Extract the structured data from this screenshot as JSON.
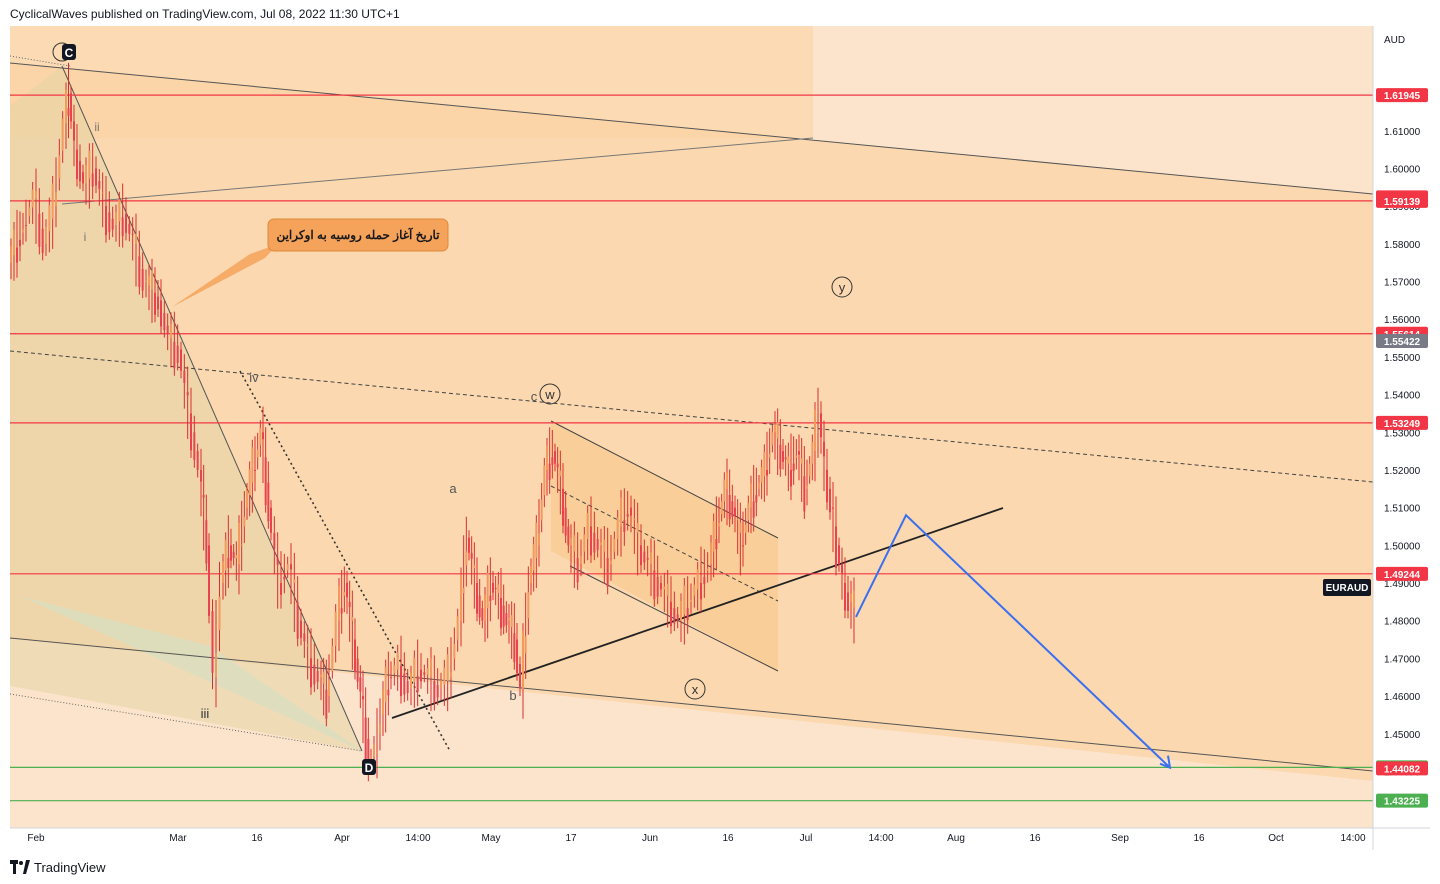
{
  "header": {
    "publish_line": "CyclicalWaves published on TradingView.com, Jul 08, 2022 11:30 UTC+1"
  },
  "footer": {
    "brand": "TradingView"
  },
  "chart_data": {
    "type": "candlestick",
    "symbol": "EURAUD",
    "currency": "AUD",
    "ylim": [
      1.425,
      1.6378
    ],
    "y_ticks": [
      1.44,
      1.45,
      1.46,
      1.47,
      1.48,
      1.49,
      1.5,
      1.51,
      1.52,
      1.53,
      1.54,
      1.55,
      1.56,
      1.57,
      1.58,
      1.59,
      1.6,
      1.61
    ],
    "x_tick_labels": [
      "Feb",
      "Mar",
      "16",
      "Apr",
      "14:00",
      "May",
      "17",
      "Jun",
      "16",
      "Jul",
      "14:00",
      "Aug",
      "16",
      "Sep",
      "16",
      "Oct",
      "14:00"
    ],
    "price_labels": [
      {
        "value": "1.61945",
        "color": "#f23645"
      },
      {
        "value": "1.59233",
        "color": "#f23645"
      },
      {
        "value": "1.59139",
        "color": "#f23645"
      },
      {
        "value": "1.55614",
        "color": "#f23645"
      },
      {
        "value": "1.55422",
        "color": "#787b86"
      },
      {
        "value": "1.53249",
        "color": "#f23645"
      },
      {
        "value": "1.49244",
        "color": "#f23645"
      },
      {
        "value": "1.44108",
        "color": "#4caf50"
      },
      {
        "value": "1.44082",
        "color": "#f23645"
      },
      {
        "value": "1.43225",
        "color": "#4caf50"
      }
    ],
    "symbol_tag": "EURAUD",
    "horizontal_levels": [
      {
        "price": 1.61945,
        "color": "#f23645"
      },
      {
        "price": 1.59139,
        "color": "#f23645"
      },
      {
        "price": 1.55614,
        "color": "#f23645"
      },
      {
        "price": 1.53249,
        "color": "#f23645"
      },
      {
        "price": 1.49244,
        "color": "#f23645"
      },
      {
        "price": 1.44108,
        "color": "#4caf50"
      },
      {
        "price": 1.43225,
        "color": "#4caf50"
      }
    ],
    "wave_labels": [
      "C",
      "ii",
      "i",
      "iv",
      "iii",
      "D",
      "a",
      "b",
      "c",
      "w",
      "x",
      "y"
    ],
    "callout": "تاریخ آغاز حمله روسیه به اوکراین",
    "price_path": [
      [
        0,
        1.575
      ],
      [
        15,
        1.585
      ],
      [
        25,
        1.592
      ],
      [
        35,
        1.58
      ],
      [
        45,
        1.59
      ],
      [
        55,
        1.612
      ],
      [
        60,
        1.62
      ],
      [
        66,
        1.605
      ],
      [
        75,
        1.596
      ],
      [
        85,
        1.6
      ],
      [
        95,
        1.59
      ],
      [
        105,
        1.585
      ],
      [
        115,
        1.588
      ],
      [
        125,
        1.58
      ],
      [
        135,
        1.57
      ],
      [
        150,
        1.565
      ],
      [
        160,
        1.555
      ],
      [
        170,
        1.552
      ],
      [
        180,
        1.535
      ],
      [
        190,
        1.52
      ],
      [
        198,
        1.5
      ],
      [
        205,
        1.465
      ],
      [
        212,
        1.49
      ],
      [
        220,
        1.5
      ],
      [
        228,
        1.495
      ],
      [
        236,
        1.51
      ],
      [
        244,
        1.52
      ],
      [
        252,
        1.53
      ],
      [
        260,
        1.51
      ],
      [
        270,
        1.49
      ],
      [
        280,
        1.495
      ],
      [
        290,
        1.48
      ],
      [
        300,
        1.47
      ],
      [
        310,
        1.465
      ],
      [
        318,
        1.46
      ],
      [
        328,
        1.48
      ],
      [
        336,
        1.49
      ],
      [
        344,
        1.475
      ],
      [
        352,
        1.46
      ],
      [
        360,
        1.443
      ],
      [
        366,
        1.445
      ],
      [
        372,
        1.455
      ],
      [
        380,
        1.465
      ],
      [
        390,
        1.468
      ],
      [
        400,
        1.462
      ],
      [
        410,
        1.467
      ],
      [
        420,
        1.465
      ],
      [
        430,
        1.462
      ],
      [
        440,
        1.465
      ],
      [
        450,
        1.48
      ],
      [
        458,
        1.502
      ],
      [
        466,
        1.49
      ],
      [
        474,
        1.48
      ],
      [
        482,
        1.49
      ],
      [
        490,
        1.486
      ],
      [
        498,
        1.48
      ],
      [
        506,
        1.475
      ],
      [
        512,
        1.462
      ],
      [
        520,
        1.49
      ],
      [
        528,
        1.5
      ],
      [
        536,
        1.52
      ],
      [
        544,
        1.525
      ],
      [
        552,
        1.515
      ],
      [
        560,
        1.5
      ],
      [
        570,
        1.495
      ],
      [
        580,
        1.505
      ],
      [
        590,
        1.5
      ],
      [
        600,
        1.495
      ],
      [
        610,
        1.505
      ],
      [
        620,
        1.51
      ],
      [
        630,
        1.5
      ],
      [
        640,
        1.495
      ],
      [
        650,
        1.49
      ],
      [
        660,
        1.485
      ],
      [
        670,
        1.48
      ],
      [
        680,
        1.485
      ],
      [
        690,
        1.49
      ],
      [
        700,
        1.495
      ],
      [
        708,
        1.505
      ],
      [
        716,
        1.515
      ],
      [
        724,
        1.51
      ],
      [
        732,
        1.5
      ],
      [
        740,
        1.51
      ],
      [
        748,
        1.515
      ],
      [
        756,
        1.52
      ],
      [
        764,
        1.53
      ],
      [
        772,
        1.525
      ],
      [
        780,
        1.52
      ],
      [
        788,
        1.525
      ],
      [
        796,
        1.515
      ],
      [
        804,
        1.525
      ],
      [
        810,
        1.535
      ],
      [
        816,
        1.52
      ],
      [
        822,
        1.51
      ],
      [
        828,
        1.5
      ],
      [
        834,
        1.49
      ],
      [
        840,
        1.485
      ],
      [
        846,
        1.482
      ]
    ],
    "projection": [
      [
        846,
        1.481
      ],
      [
        896,
        1.508
      ],
      [
        1160,
        1.441
      ]
    ]
  }
}
